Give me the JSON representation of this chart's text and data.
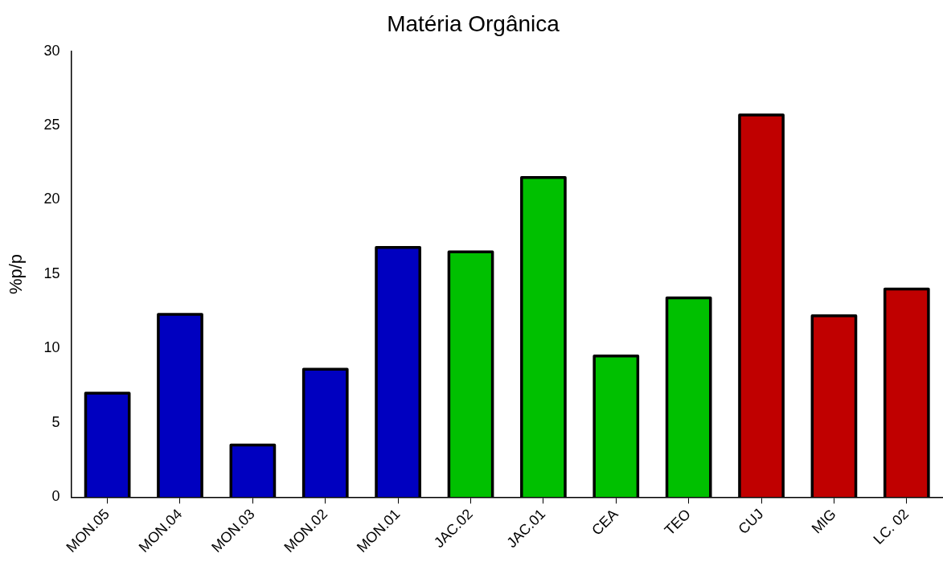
{
  "chart_data": {
    "type": "bar",
    "title": "Matéria Orgânica",
    "ylabel": "%p/p",
    "categories": [
      "MON.05",
      "MON.04",
      "MON.03",
      "MON.02",
      "MON.01",
      "JAC.02",
      "JAC.01",
      "CEA",
      "TEO",
      "CUJ",
      "MIG",
      "LC. 02"
    ],
    "values": [
      7.0,
      12.3,
      3.5,
      8.6,
      16.8,
      16.5,
      21.5,
      9.5,
      13.4,
      25.7,
      12.2,
      14.0
    ],
    "colors": [
      "#0000c0",
      "#0000c0",
      "#0000c0",
      "#0000c0",
      "#0000c0",
      "#00c000",
      "#00c000",
      "#00c000",
      "#00c000",
      "#c00000",
      "#c00000",
      "#c00000"
    ],
    "ylim": [
      0,
      30
    ],
    "yticks": [
      0,
      5,
      10,
      15,
      20,
      25,
      30
    ],
    "grid": false,
    "legend": false
  }
}
